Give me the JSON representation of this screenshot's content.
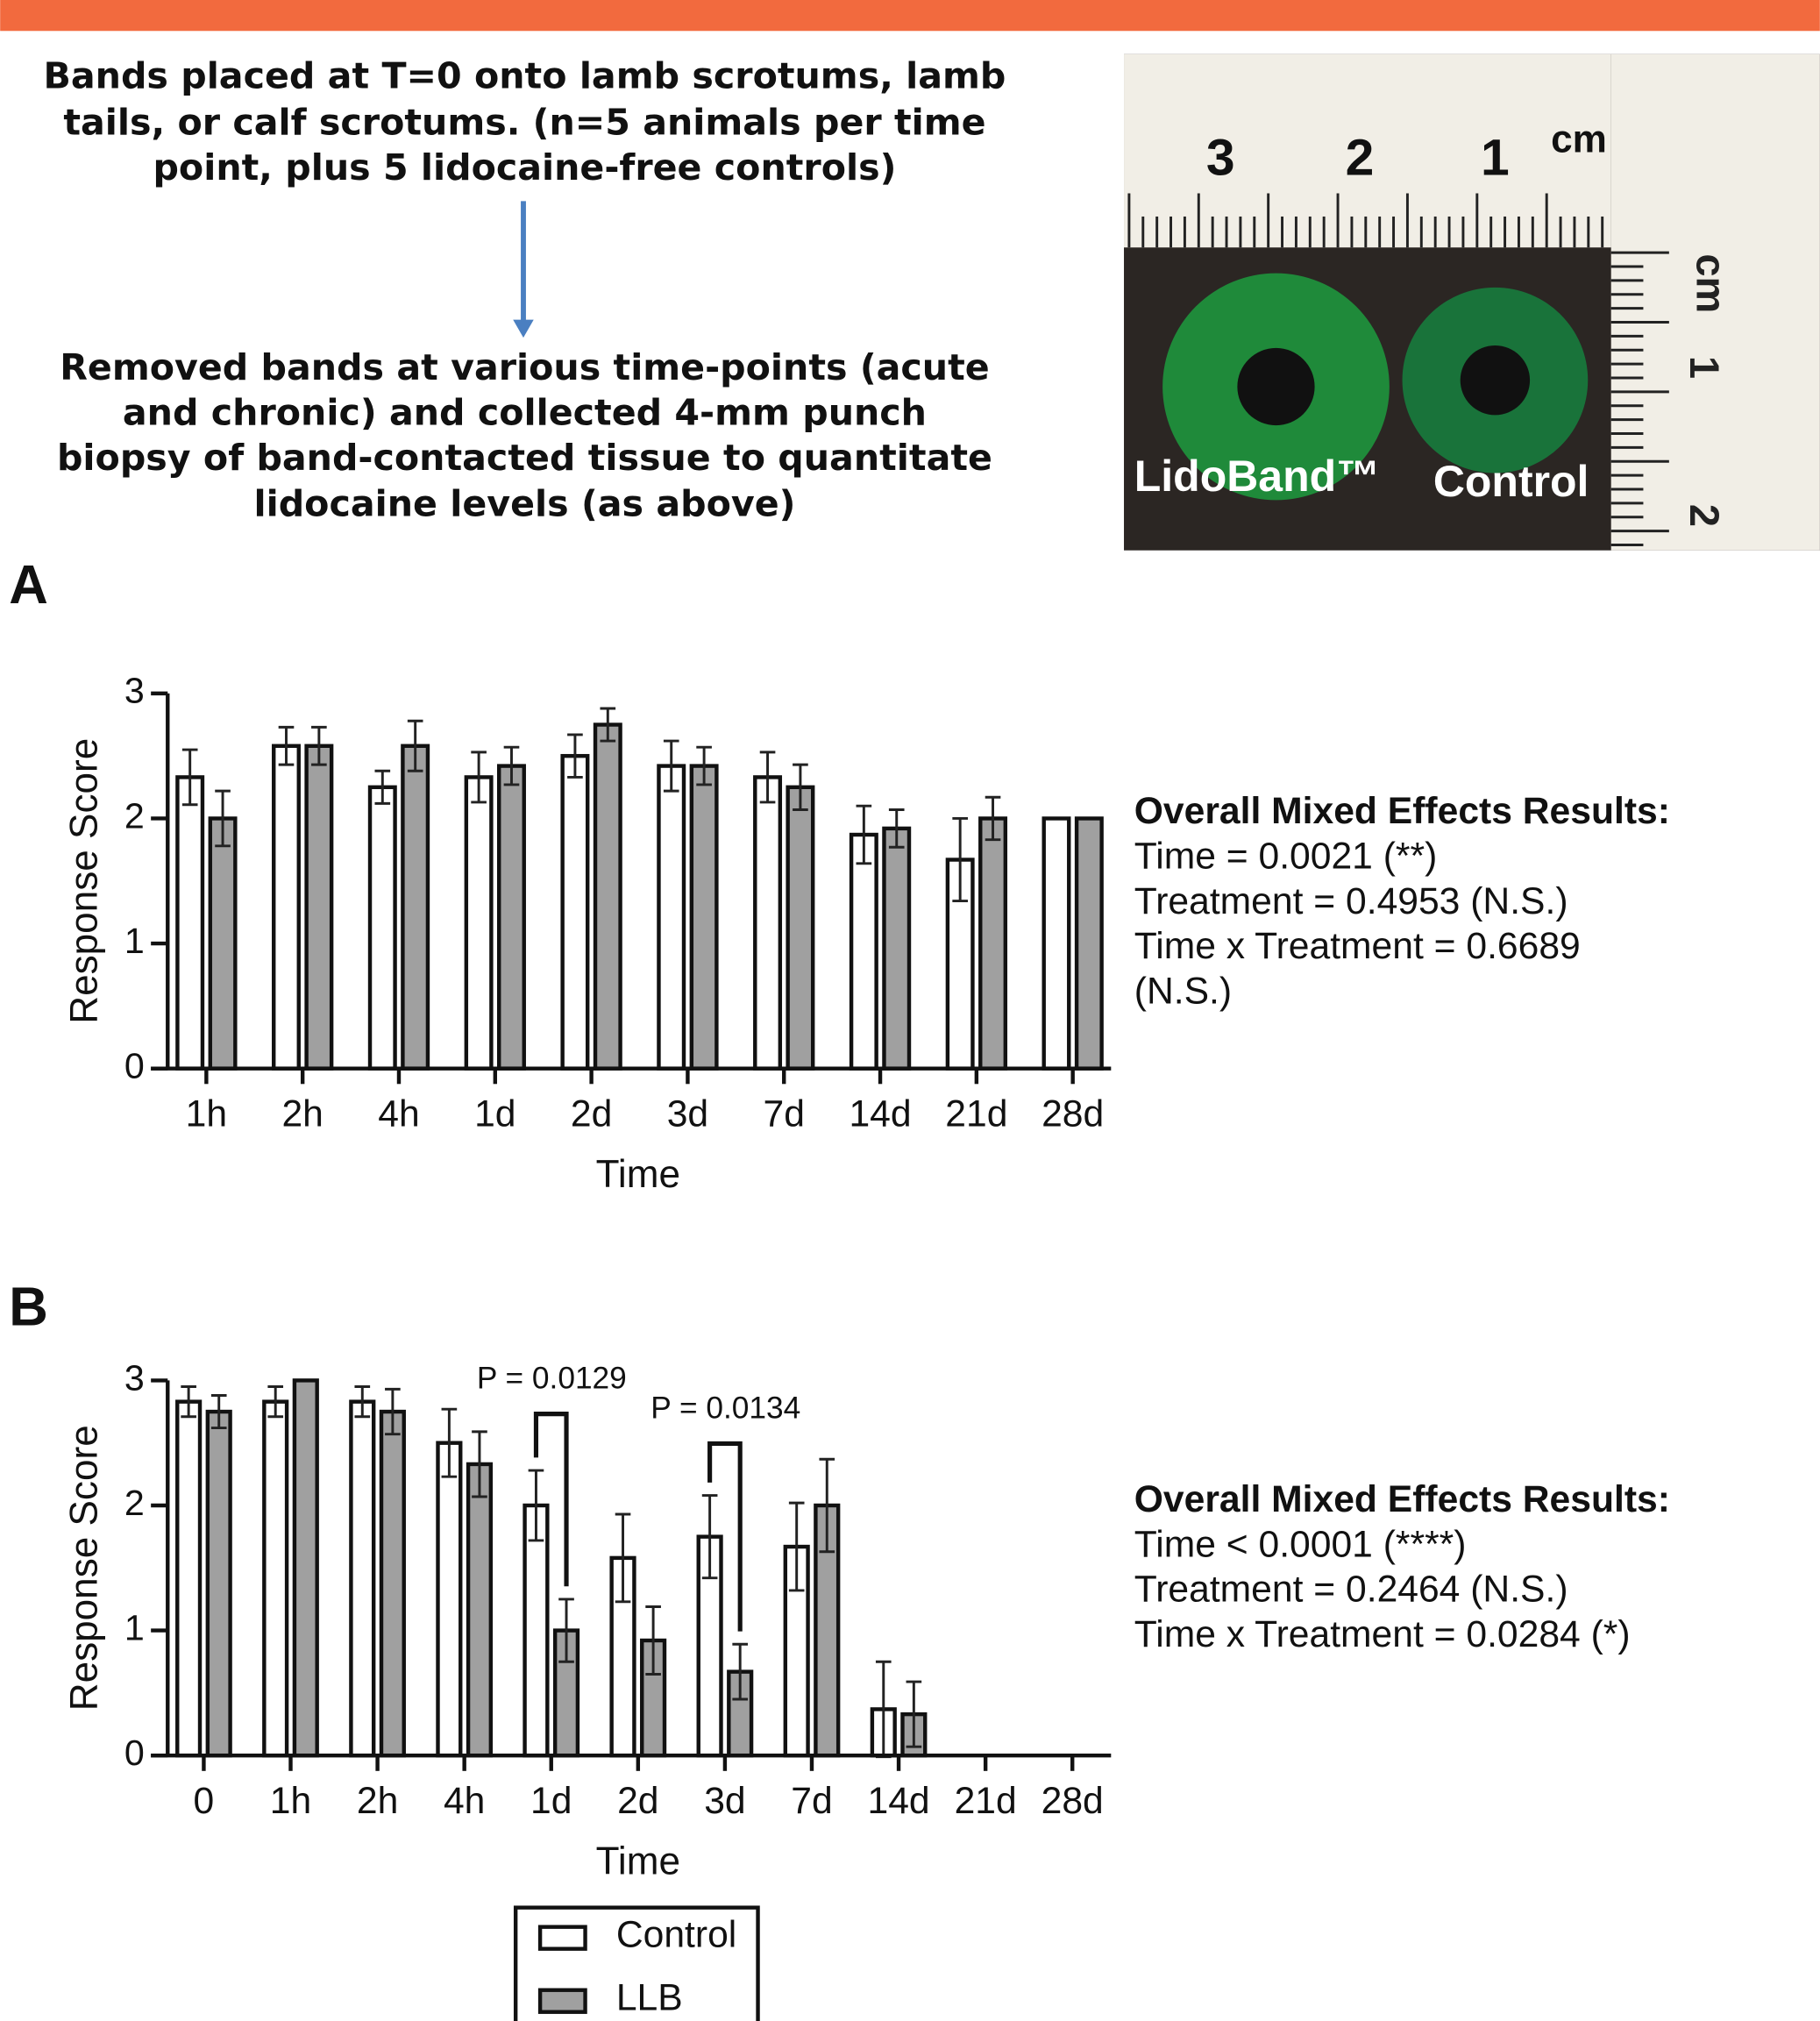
{
  "flow": {
    "step1": [
      "Bands placed at T=0 onto lamb scrotums, lamb",
      "tails, or calf scrotums. (n=5 animals per time",
      "point, plus 5 lidocaine-free controls)"
    ],
    "step2": [
      "Removed bands at various time-points (acute",
      "and chronic) and collected 4-mm punch",
      "biopsy of band-contacted tissue to quantitate",
      "lidocaine levels (as above)"
    ]
  },
  "photo": {
    "ruler_top": [
      "3",
      "2",
      "1",
      "cm"
    ],
    "ruler_side": [
      "cm",
      "1",
      "2"
    ],
    "labels": [
      "LidoBand™",
      "Control"
    ]
  },
  "chart_data": [
    {
      "type": "bar",
      "panel": "A",
      "x_label": "Time",
      "y_label": "Response Score",
      "categories": [
        "1h",
        "2h",
        "4h",
        "1d",
        "2d",
        "3d",
        "7d",
        "14d",
        "21d",
        "28d"
      ],
      "series": [
        {
          "name": "Control",
          "color": "#ffffff",
          "values": [
            2.33,
            2.58,
            2.25,
            2.33,
            2.5,
            2.42,
            2.33,
            1.87,
            1.67,
            2.0
          ],
          "errors": [
            0.22,
            0.15,
            0.13,
            0.2,
            0.17,
            0.2,
            0.2,
            0.23,
            0.33,
            null
          ]
        },
        {
          "name": "LLB",
          "color": "#a0a0a0",
          "values": [
            2.0,
            2.58,
            2.58,
            2.42,
            2.75,
            2.42,
            2.25,
            1.92,
            2.0,
            2.0
          ],
          "errors": [
            0.22,
            0.15,
            0.2,
            0.15,
            0.13,
            0.15,
            0.18,
            0.15,
            0.17,
            null
          ]
        }
      ],
      "ylim": [
        0,
        3
      ],
      "yticks": [
        0,
        1,
        2,
        3
      ],
      "grid": false,
      "notes": {
        "title": "Overall Mixed Effects Results:",
        "lines": [
          "Time = 0.0021 (**)",
          "Treatment = 0.4953 (N.S.)",
          "Time x Treatment = 0.6689",
          "(N.S.)"
        ]
      }
    },
    {
      "type": "bar",
      "panel": "B",
      "x_label": "Time",
      "y_label": "Response Score",
      "categories": [
        "0",
        "1h",
        "2h",
        "4h",
        "1d",
        "2d",
        "3d",
        "7d",
        "14d",
        "21d",
        "28d"
      ],
      "series": [
        {
          "name": "Control",
          "color": "#ffffff",
          "values": [
            2.83,
            2.83,
            2.83,
            2.5,
            2.0,
            1.58,
            1.75,
            1.67,
            0.37,
            null,
            null
          ],
          "errors": [
            0.12,
            0.12,
            0.12,
            0.27,
            0.28,
            0.35,
            0.33,
            0.35,
            0.38,
            null,
            null
          ]
        },
        {
          "name": "LLB",
          "color": "#a0a0a0",
          "values": [
            2.75,
            3.0,
            2.75,
            2.33,
            1.0,
            0.92,
            0.67,
            2.0,
            0.33,
            null,
            null
          ],
          "errors": [
            0.13,
            null,
            0.18,
            0.26,
            0.25,
            0.27,
            0.22,
            0.37,
            0.26,
            null,
            null
          ]
        }
      ],
      "ylim": [
        0,
        3
      ],
      "yticks": [
        0,
        1,
        2,
        3
      ],
      "grid": false,
      "annotations": [
        "P = 0.0129",
        "P = 0.0134"
      ],
      "notes": {
        "title": "Overall Mixed Effects Results:",
        "lines": [
          "Time < 0.0001 (****)",
          "Treatment = 0.2464 (N.S.)",
          "Time x Treatment = 0.0284 (*)"
        ]
      }
    }
  ]
}
